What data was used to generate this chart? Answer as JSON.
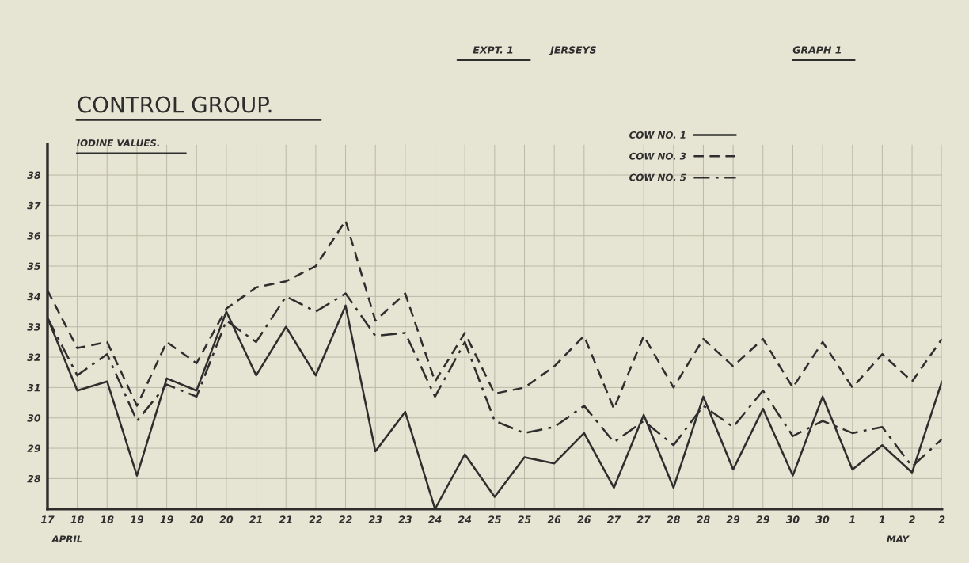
{
  "chart_data": {
    "type": "line",
    "title": "CONTROL GROUP.",
    "subtitle": "IODINE VALUES.",
    "annotations": [
      "EXPT. 1",
      "JERSEYS",
      "GRAPH 1",
      "APRIL",
      "MAY"
    ],
    "categories": [
      "17",
      "18",
      "18",
      "19",
      "19",
      "20",
      "20",
      "21",
      "21",
      "22",
      "22",
      "23",
      "23",
      "24",
      "24",
      "25",
      "25",
      "26",
      "26",
      "27",
      "27",
      "28",
      "28",
      "29",
      "29",
      "30",
      "30",
      "1",
      "1",
      "2",
      "2"
    ],
    "series": [
      {
        "name": "COW NO. 1",
        "color": "#2e2e2e",
        "line_style": "solid",
        "values": [
          33.3,
          30.9,
          31.2,
          28.1,
          31.3,
          30.9,
          33.5,
          31.4,
          33.0,
          31.4,
          33.7,
          28.9,
          30.2,
          27.0,
          28.8,
          27.4,
          28.7,
          28.5,
          29.5,
          27.7,
          30.1,
          27.7,
          30.7,
          28.3,
          30.3,
          28.1,
          30.7,
          28.3,
          29.1,
          28.2,
          31.2
        ]
      },
      {
        "name": "COW NO. 3",
        "color": "#2e2e2e",
        "line_style": "dashed",
        "values": [
          34.2,
          32.3,
          32.5,
          30.4,
          32.5,
          31.8,
          33.6,
          34.3,
          34.5,
          35.0,
          36.5,
          33.2,
          34.1,
          31.2,
          32.8,
          30.8,
          31.0,
          31.7,
          32.7,
          30.3,
          32.7,
          31.0,
          32.6,
          31.7,
          32.6,
          31.0,
          32.5,
          31.0,
          32.1,
          31.2,
          32.6
        ]
      },
      {
        "name": "COW NO. 5",
        "color": "#2e2e2e",
        "line_style": "dashdot",
        "values": [
          33.3,
          31.4,
          32.1,
          29.9,
          31.1,
          30.7,
          33.2,
          32.5,
          34.0,
          33.5,
          34.1,
          32.7,
          32.8,
          30.7,
          32.5,
          29.9,
          29.5,
          29.7,
          30.4,
          29.2,
          29.9,
          29.1,
          30.4,
          29.7,
          30.9,
          29.4,
          29.9,
          29.5,
          29.7,
          28.4,
          29.3
        ]
      }
    ],
    "ylim": [
      27,
      39
    ],
    "yticks": [
      {
        "value": 27,
        "label": null
      },
      28,
      29,
      30,
      31,
      32,
      33,
      34,
      35,
      36,
      37,
      38
    ],
    "grid": true,
    "legend": "top"
  }
}
